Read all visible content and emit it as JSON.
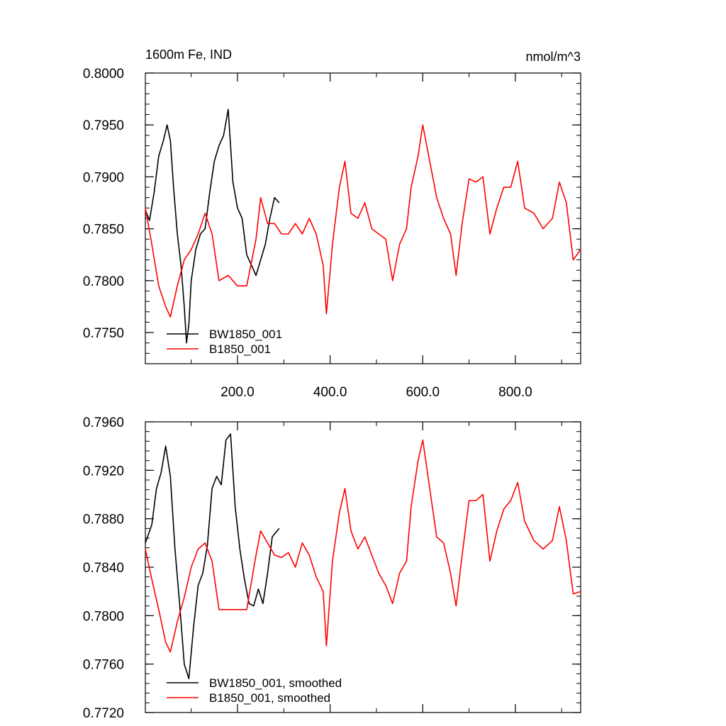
{
  "chart_data": [
    {
      "type": "line",
      "title_left": "1600m Fe, IND",
      "title_right": "nmol/m^3",
      "xlim": [
        1,
        941
      ],
      "ylim": [
        0.772,
        0.8
      ],
      "yticks": [
        0.775,
        0.78,
        0.785,
        0.79,
        0.795,
        0.8
      ],
      "ytick_labels": [
        "0.7750",
        "0.7800",
        "0.7850",
        "0.7900",
        "0.7950",
        "0.8000"
      ],
      "xticks": [
        200,
        400,
        600,
        800
      ],
      "xtick_labels": [
        "200.0",
        "400.0",
        "600.0",
        "800.0"
      ],
      "legend_position": "bottom-left",
      "series": [
        {
          "name": "BW1850_001",
          "color": "#000000",
          "x": [
            1,
            10,
            20,
            30,
            40,
            48,
            55,
            62,
            70,
            78,
            85,
            90,
            95,
            100,
            110,
            120,
            130,
            140,
            150,
            160,
            170,
            180,
            190,
            200,
            210,
            220,
            230,
            240,
            250,
            260,
            270,
            280,
            290
          ],
          "values": [
            0.7868,
            0.7858,
            0.7885,
            0.792,
            0.7935,
            0.795,
            0.7935,
            0.789,
            0.7845,
            0.7815,
            0.7775,
            0.774,
            0.7758,
            0.78,
            0.783,
            0.7845,
            0.785,
            0.7885,
            0.7915,
            0.793,
            0.794,
            0.7965,
            0.7895,
            0.787,
            0.786,
            0.7825,
            0.7815,
            0.7805,
            0.782,
            0.7835,
            0.786,
            0.788,
            0.7875
          ]
        },
        {
          "name": "B1850_001",
          "color": "#ff0000",
          "x": [
            1,
            15,
            30,
            45,
            55,
            70,
            85,
            100,
            115,
            130,
            145,
            160,
            180,
            200,
            220,
            240,
            250,
            265,
            280,
            295,
            310,
            325,
            340,
            355,
            370,
            385,
            392,
            405,
            420,
            432,
            445,
            460,
            475,
            490,
            505,
            520,
            535,
            550,
            565,
            575,
            590,
            600,
            615,
            630,
            645,
            660,
            672,
            685,
            700,
            715,
            730,
            745,
            760,
            775,
            790,
            805,
            820,
            840,
            860,
            880,
            895,
            910,
            925,
            941
          ],
          "values": [
            0.787,
            0.7835,
            0.7795,
            0.7775,
            0.7765,
            0.7795,
            0.782,
            0.783,
            0.7845,
            0.7865,
            0.7845,
            0.78,
            0.7805,
            0.7795,
            0.7795,
            0.784,
            0.788,
            0.7855,
            0.7855,
            0.7845,
            0.7845,
            0.7855,
            0.7845,
            0.786,
            0.7845,
            0.7815,
            0.7768,
            0.7835,
            0.789,
            0.7915,
            0.7865,
            0.786,
            0.7875,
            0.785,
            0.7845,
            0.784,
            0.78,
            0.7835,
            0.785,
            0.789,
            0.792,
            0.795,
            0.7915,
            0.788,
            0.786,
            0.7845,
            0.7805,
            0.7855,
            0.7898,
            0.7895,
            0.79,
            0.7845,
            0.787,
            0.789,
            0.789,
            0.7915,
            0.787,
            0.7865,
            0.785,
            0.786,
            0.7895,
            0.7875,
            0.782,
            0.783
          ]
        }
      ]
    },
    {
      "type": "line",
      "xlim": [
        1,
        941
      ],
      "ylim": [
        0.772,
        0.796
      ],
      "yticks": [
        0.772,
        0.776,
        0.78,
        0.784,
        0.788,
        0.792,
        0.796
      ],
      "ytick_labels": [
        "0.7720",
        "0.7760",
        "0.7800",
        "0.7840",
        "0.7880",
        "0.7920",
        "0.7960"
      ],
      "legend_position": "bottom-left",
      "series": [
        {
          "name": "BW1850_001, smoothed",
          "color": "#000000",
          "x": [
            1,
            15,
            25,
            35,
            45,
            55,
            65,
            75,
            85,
            95,
            105,
            115,
            125,
            135,
            145,
            155,
            165,
            175,
            185,
            195,
            205,
            215,
            225,
            235,
            245,
            255,
            265,
            275,
            290
          ],
          "values": [
            0.786,
            0.7875,
            0.7905,
            0.7918,
            0.794,
            0.7915,
            0.7855,
            0.781,
            0.776,
            0.7748,
            0.779,
            0.7825,
            0.7835,
            0.7858,
            0.7905,
            0.7915,
            0.7908,
            0.7945,
            0.795,
            0.789,
            0.7855,
            0.783,
            0.781,
            0.7808,
            0.7822,
            0.781,
            0.7835,
            0.7865,
            0.7872
          ]
        },
        {
          "name": "B1850_001, smoothed",
          "color": "#ff0000",
          "x": [
            1,
            15,
            30,
            45,
            55,
            70,
            85,
            100,
            115,
            130,
            145,
            160,
            180,
            200,
            220,
            240,
            250,
            265,
            280,
            295,
            310,
            325,
            340,
            355,
            370,
            385,
            392,
            405,
            420,
            432,
            445,
            460,
            475,
            490,
            505,
            520,
            535,
            550,
            565,
            575,
            590,
            600,
            615,
            630,
            645,
            660,
            672,
            685,
            700,
            715,
            730,
            745,
            760,
            775,
            790,
            805,
            820,
            840,
            860,
            880,
            895,
            910,
            925,
            941
          ],
          "values": [
            0.7855,
            0.783,
            0.7805,
            0.7778,
            0.777,
            0.7795,
            0.7815,
            0.784,
            0.7855,
            0.786,
            0.7845,
            0.7805,
            0.7805,
            0.7805,
            0.7805,
            0.785,
            0.787,
            0.786,
            0.785,
            0.7848,
            0.7852,
            0.784,
            0.786,
            0.785,
            0.7832,
            0.782,
            0.7775,
            0.7845,
            0.7885,
            0.7905,
            0.787,
            0.7855,
            0.7865,
            0.785,
            0.7835,
            0.7825,
            0.781,
            0.7835,
            0.7845,
            0.789,
            0.7928,
            0.7945,
            0.7905,
            0.7865,
            0.786,
            0.7835,
            0.7808,
            0.785,
            0.7895,
            0.7895,
            0.79,
            0.7845,
            0.787,
            0.7888,
            0.7895,
            0.791,
            0.7878,
            0.7862,
            0.7855,
            0.7862,
            0.789,
            0.7862,
            0.7818,
            0.782
          ]
        }
      ]
    }
  ]
}
